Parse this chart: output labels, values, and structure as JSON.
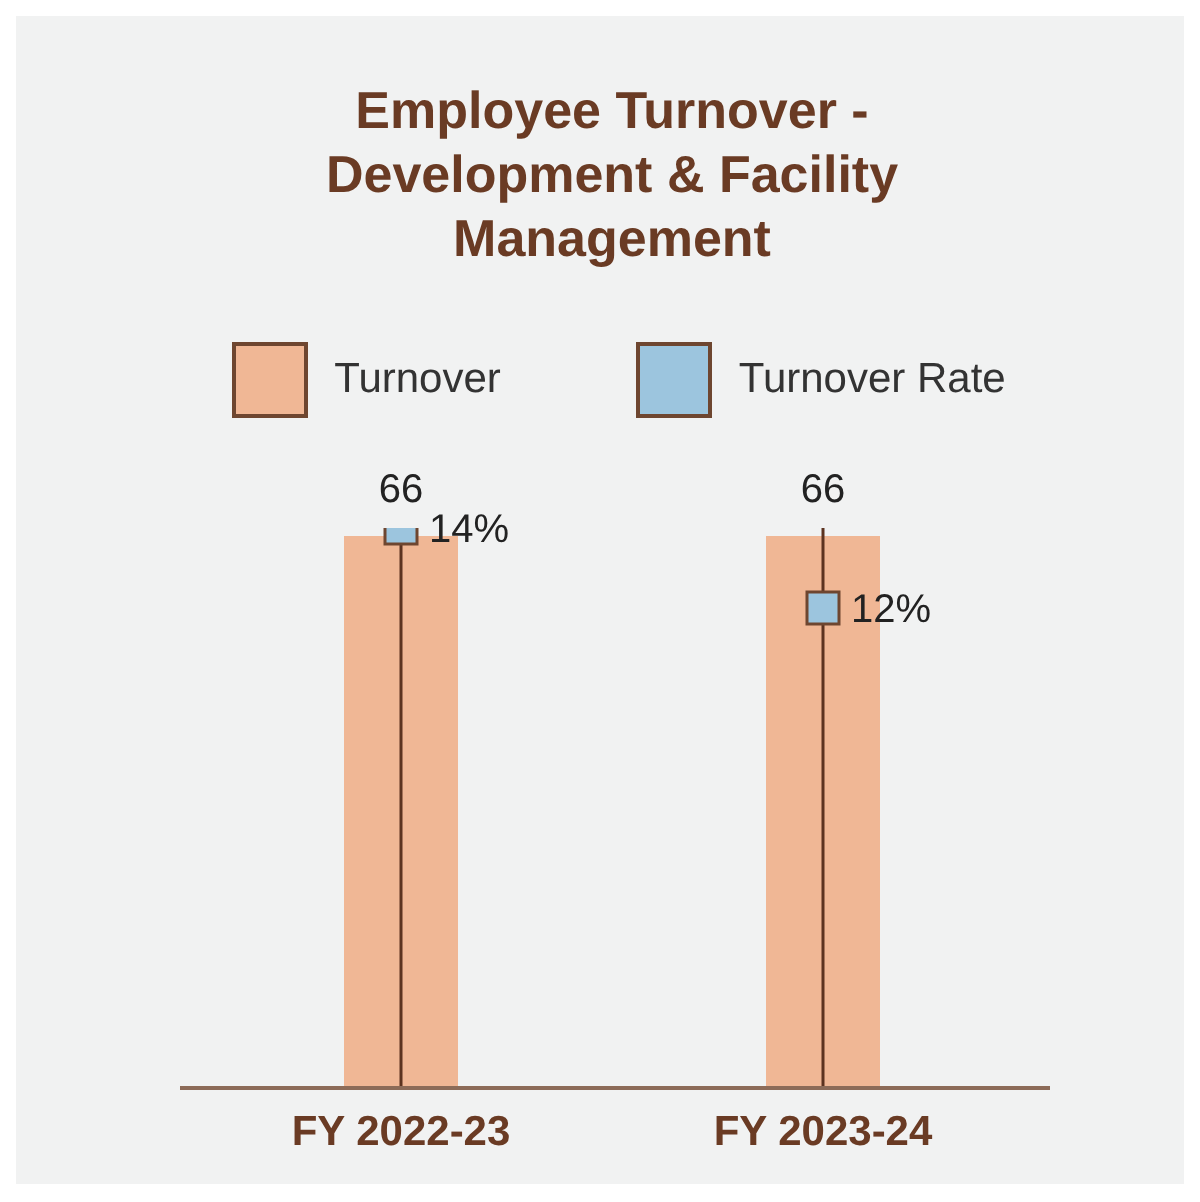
{
  "chart_data": {
    "type": "bar",
    "title": "Employee Turnover - Development & Facility Management",
    "categories": [
      "FY 2022-23",
      "FY 2023-24"
    ],
    "series": [
      {
        "name": "Turnover",
        "color": "#f0b795",
        "values": [
          66,
          66
        ],
        "value_labels": [
          "66",
          "66"
        ]
      },
      {
        "name": "Turnover Rate",
        "type": "scatter",
        "axis": "y2",
        "x": [
          "FY 2022-23",
          "FY 2023-24"
        ],
        "color": "#9cc5de",
        "values": [
          14,
          12
        ],
        "value_labels": [
          "14%",
          "12%"
        ]
      }
    ],
    "ref_lines": [
      {
        "axis": "x",
        "value": "FY 2022-23",
        "color": "#5c3320"
      },
      {
        "axis": "x",
        "value": "FY 2023-24",
        "color": "#5c3320"
      }
    ],
    "marker": "square",
    "legend": "top",
    "tick_labels": "x"
  }
}
